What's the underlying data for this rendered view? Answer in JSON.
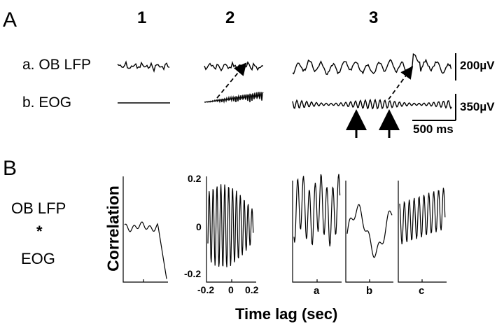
{
  "panel_A": "A",
  "panel_B": "B",
  "columns": [
    "1",
    "2",
    "3"
  ],
  "rows": {
    "a": "a. OB LFP",
    "b": "b. EOG"
  },
  "scalebars": {
    "lfp": "200µV",
    "eog": "350µV",
    "time": "500 ms"
  },
  "corr_left": {
    "line1": "OB LFP",
    "line2": "*",
    "line3": "EOG"
  },
  "ylabel": "Correlation",
  "xlabel": "Time lag (sec)",
  "ticks": {
    "y_top": "0.2",
    "y_mid": "0",
    "y_bot": "-0.2",
    "x_left": "-0.2",
    "x_mid": "0",
    "x_right": "0.2"
  },
  "subpanels": [
    "a",
    "b",
    "c"
  ]
}
